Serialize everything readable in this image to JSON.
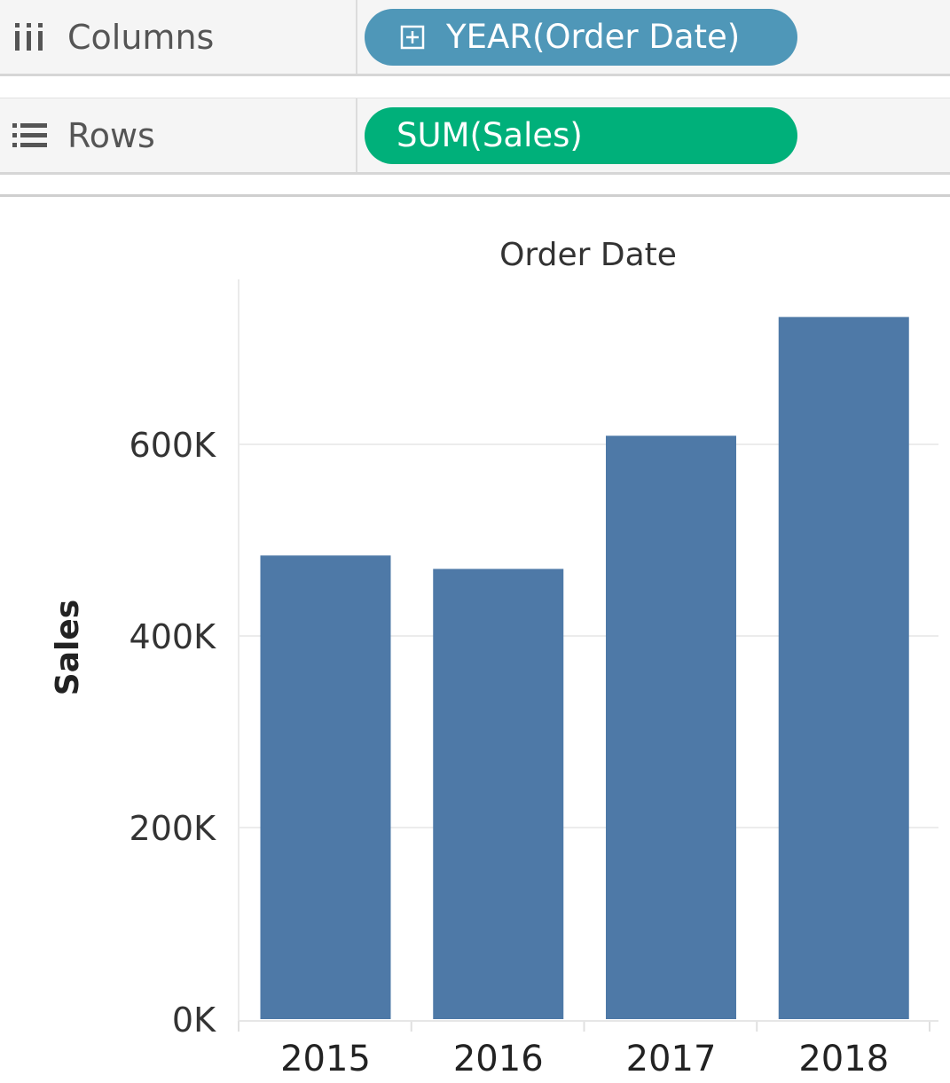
{
  "shelves": {
    "columns": {
      "label": "Columns",
      "icon": "columns-shelf-icon",
      "pill": "YEAR(Order Date)",
      "pill_icon": "expand-plus-icon",
      "pill_color": "#4f97b8"
    },
    "rows": {
      "label": "Rows",
      "icon": "rows-shelf-icon",
      "pill": "SUM(Sales)",
      "pill_color": "#00b07a"
    }
  },
  "chart_data": {
    "type": "bar",
    "title": "Order Date",
    "xlabel": "",
    "ylabel": "Sales",
    "categories": [
      "2015",
      "2016",
      "2017",
      "2018"
    ],
    "values": [
      484000,
      470000,
      609000,
      733000
    ],
    "ylim": [
      0,
      770000
    ],
    "yticks": [
      0,
      200000,
      400000,
      600000
    ],
    "ytick_labels": [
      "0K",
      "200K",
      "400K",
      "600K"
    ],
    "grid": true,
    "bar_color": "#4e79a7"
  }
}
